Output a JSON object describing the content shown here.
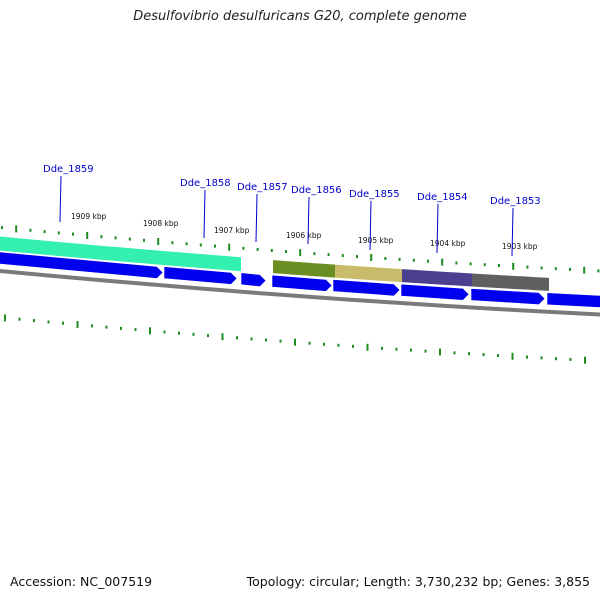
{
  "title": "Desulfovibrio desulfuricans G20, complete genome",
  "footer": {
    "accession": "Accession: NC_007519",
    "summary": "Topology: circular; Length: 3,730,232 bp; Genes: 3,855"
  },
  "colors": {
    "gene_blue": "#0000ee",
    "gene_label": "#0000cc",
    "tick_green": "#1f8c1f",
    "backbone": "#7a7a7a",
    "highlight_teal": "#33f0b0",
    "highlight_olive": "#6b8e23",
    "highlight_khaki": "#c8bc6a",
    "highlight_purple": "#4b3f8f",
    "highlight_gray": "#5f5f5f"
  },
  "genes": [
    {
      "name": "Dde_1859"
    },
    {
      "name": "Dde_1858"
    },
    {
      "name": "Dde_1857"
    },
    {
      "name": "Dde_1856"
    },
    {
      "name": "Dde_1855"
    },
    {
      "name": "Dde_1854"
    },
    {
      "name": "Dde_1853"
    }
  ],
  "scale_labels": [
    {
      "text": "1909 kbp"
    },
    {
      "text": "1908 kbp"
    },
    {
      "text": "1907 kbp"
    },
    {
      "text": "1906 kbp"
    },
    {
      "text": "1905 kbp"
    },
    {
      "text": "1904 kbp"
    },
    {
      "text": "1903 kbp"
    }
  ]
}
